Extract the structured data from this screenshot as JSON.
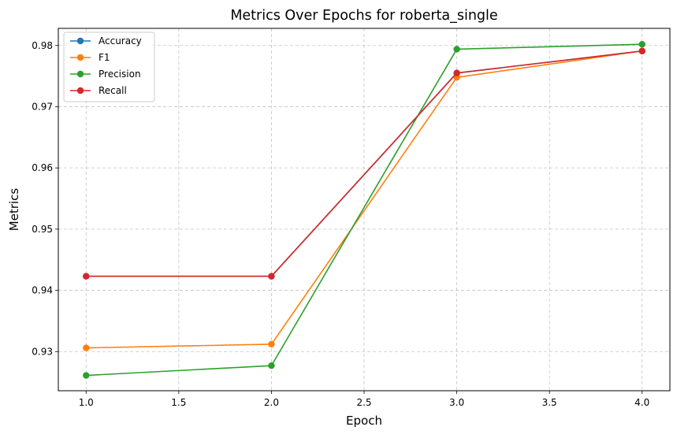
{
  "chart_data": {
    "type": "line",
    "title": "Metrics Over Epochs for roberta_single",
    "xlabel": "Epoch",
    "ylabel": "Metrics",
    "x": [
      1.0,
      2.0,
      3.0,
      4.0
    ],
    "xlim": [
      0.85,
      4.15
    ],
    "ylim": [
      0.9236,
      0.9828
    ],
    "xticks": [
      1.0,
      1.5,
      2.0,
      2.5,
      3.0,
      3.5,
      4.0
    ],
    "xtick_labels": [
      "1.0",
      "1.5",
      "2.0",
      "2.5",
      "3.0",
      "3.5",
      "4.0"
    ],
    "yticks": [
      0.93,
      0.94,
      0.95,
      0.96,
      0.97,
      0.98
    ],
    "ytick_labels": [
      "0.93",
      "0.94",
      "0.95",
      "0.96",
      "0.97",
      "0.98"
    ],
    "grid": true,
    "legend_position": "top-left",
    "markers": "circle",
    "series": [
      {
        "name": "Accuracy",
        "color": "#1f77b4",
        "values": [
          0.9423,
          0.9423,
          0.9755,
          0.9791
        ]
      },
      {
        "name": "F1",
        "color": "#ff7f0e",
        "values": [
          0.9306,
          0.9312,
          0.9748,
          0.9791
        ]
      },
      {
        "name": "Precision",
        "color": "#2ca02c",
        "values": [
          0.9261,
          0.9277,
          0.9794,
          0.9802
        ]
      },
      {
        "name": "Recall",
        "color": "#d62728",
        "values": [
          0.9423,
          0.9423,
          0.9755,
          0.9791
        ]
      }
    ]
  }
}
